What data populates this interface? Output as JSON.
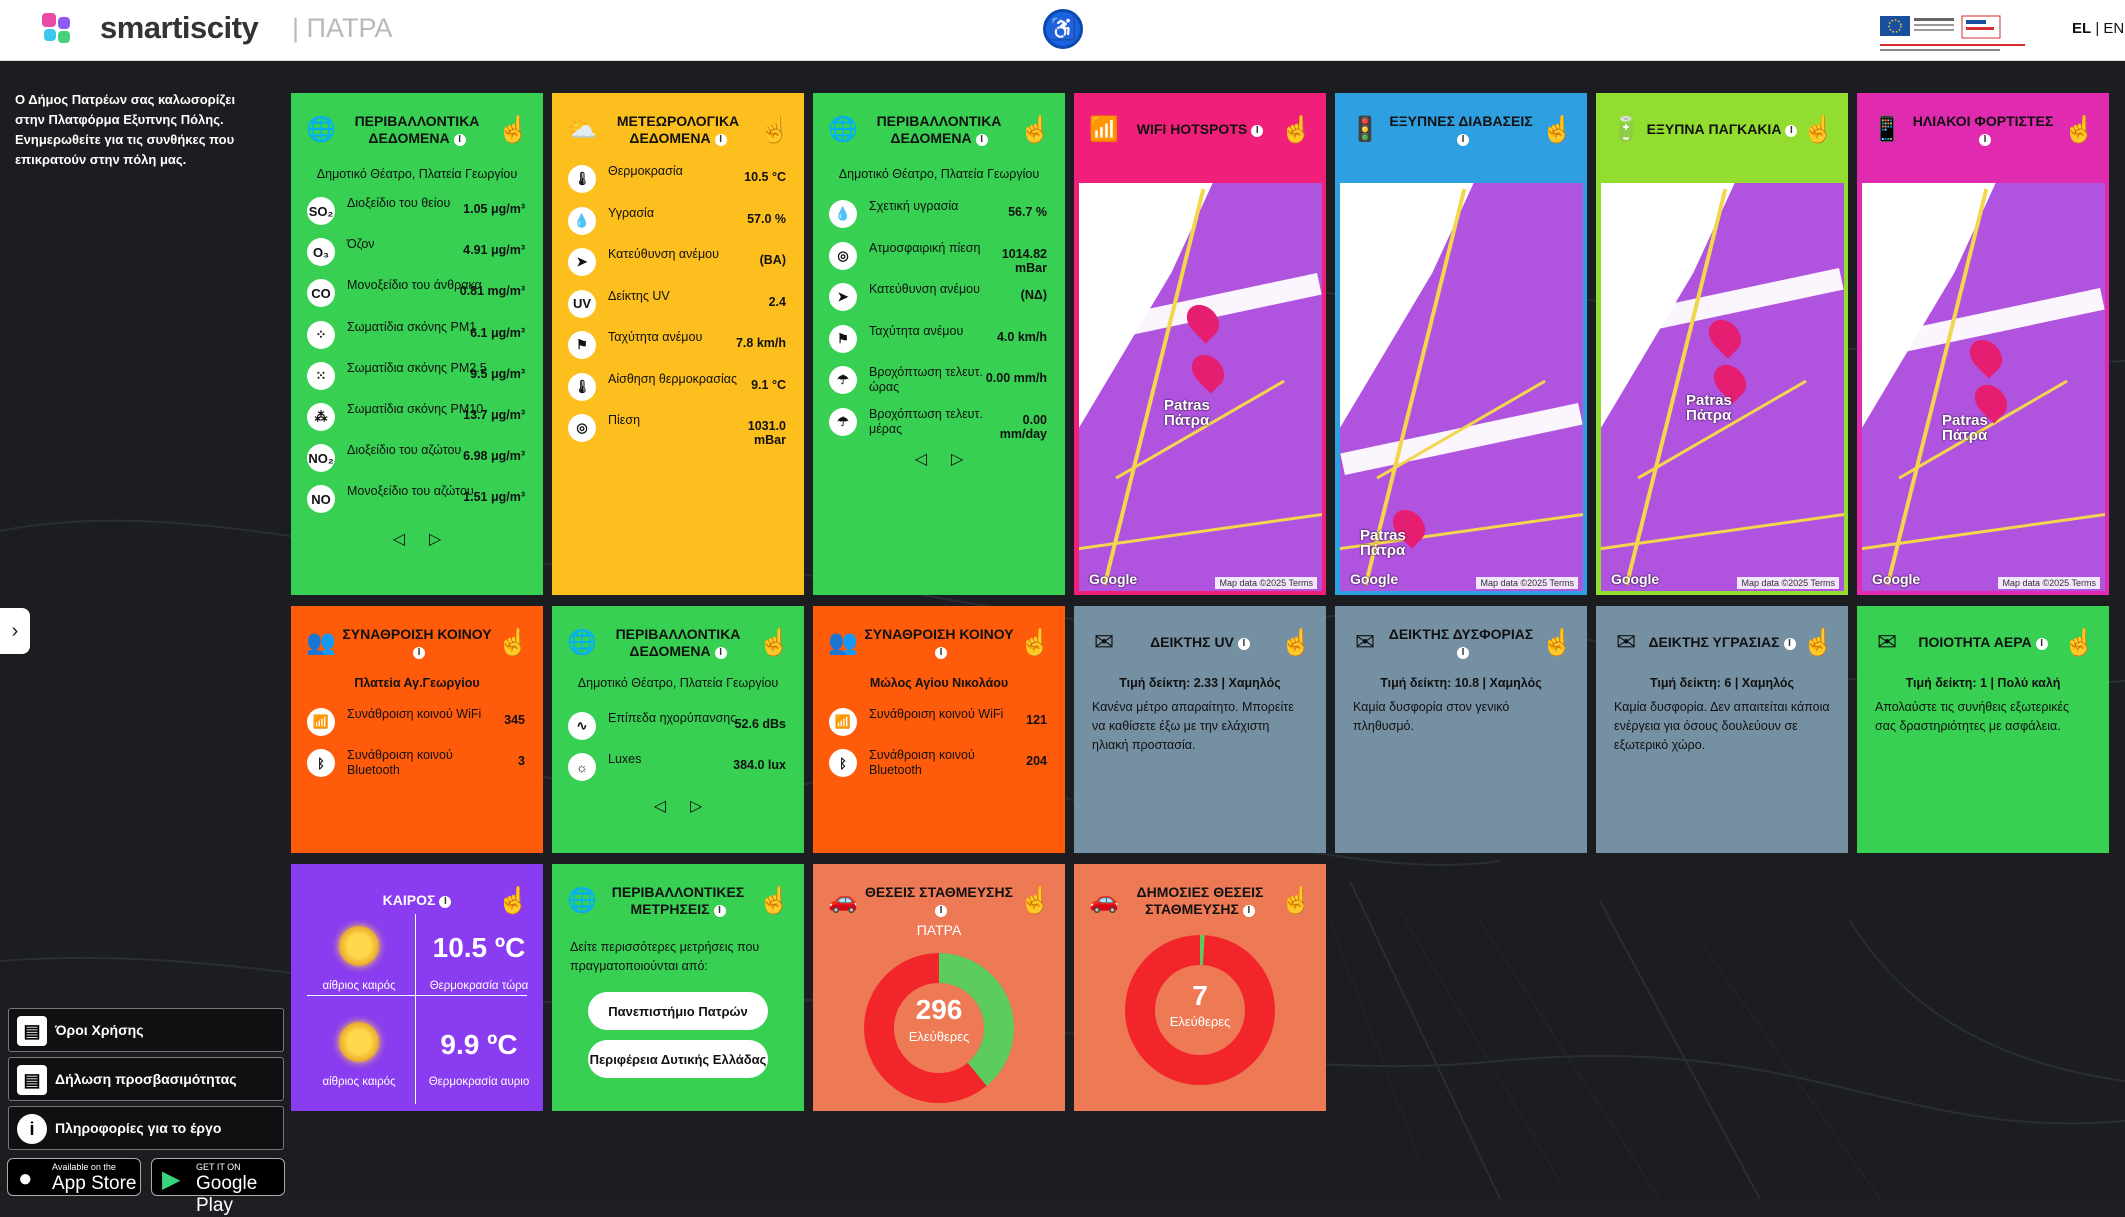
{
  "header": {
    "brand": "smartiscity",
    "city": "| ΠΑΤΡΑ",
    "lang_el": "EL",
    "lang_sep": " | ",
    "lang_en": "EN"
  },
  "intro": "Ο Δήμος Πατρέων σας καλωσορίζει στην Πλατφόρμα Εξυπνης Πόλης. Ενημερωθείτε για τις συνθήκες που επικρατούν στην πόλη μας.",
  "side_links": [
    {
      "label": "Όροι Χρήσης"
    },
    {
      "label": "Δήλωση προσβασιμότητας"
    },
    {
      "label": "Πληροφορίες για το έργο"
    }
  ],
  "stores": {
    "apple_small": "Available on the",
    "apple_big": "App Store",
    "google_small": "GET IT ON",
    "google_big": "Google Play"
  },
  "tiles": {
    "env1": {
      "title": "ΠΕΡΙΒΑΛΛΟΝΤΙΚΑ ΔΕΔΟΜΕΝΑ",
      "location": "Δημοτικό Θέατρο, Πλατεία Γεωργίου",
      "rows": [
        {
          "icon": "SO₂",
          "label": "Διοξείδιο του θείου",
          "value": "1.05 μg/m³"
        },
        {
          "icon": "O₃",
          "label": "Όζον",
          "value": "4.91 μg/m³"
        },
        {
          "icon": "CO",
          "label": "Μονοξείδιο του άνθρακα",
          "value": "0.81 mg/m³"
        },
        {
          "icon": "⁘",
          "label": "Σωματίδια σκόνης PM1",
          "value": "6.1 μg/m³"
        },
        {
          "icon": "⁙",
          "label": "Σωματίδια σκόνης PM2.5",
          "value": "9.5 μg/m³"
        },
        {
          "icon": "⁂",
          "label": "Σωματίδια σκόνης PM10",
          "value": "13.7 μg/m³"
        },
        {
          "icon": "NO₂",
          "label": "Διοξείδιο του αζώτου",
          "value": "6.98 μg/m³"
        },
        {
          "icon": "NO",
          "label": "Μονοξείδιο του αζώτου",
          "value": "1.51 μg/m³"
        }
      ]
    },
    "meteo": {
      "title": "ΜΕΤΕΩΡΟΛΟΓΙΚΑ ΔΕΔΟΜΕΝΑ",
      "rows": [
        {
          "icon": "🌡",
          "label": "Θερμοκρασία",
          "value": "10.5 °C"
        },
        {
          "icon": "💧",
          "label": "Υγρασία",
          "value": "57.0 %"
        },
        {
          "icon": "➤",
          "label": "Κατεύθυνση ανέμου",
          "value": "(ΒΑ)"
        },
        {
          "icon": "UV",
          "label": "Δείκτης UV",
          "value": "2.4"
        },
        {
          "icon": "⚑",
          "label": "Ταχύτητα ανέμου",
          "value": "7.8 km/h"
        },
        {
          "icon": "🌡",
          "label": "Αίσθηση θερμοκρασίας",
          "value": "9.1 °C"
        },
        {
          "icon": "◎",
          "label": "Πίεση",
          "value": "1031.0 mBar"
        }
      ]
    },
    "env2": {
      "title": "ΠΕΡΙΒΑΛΛΟΝΤΙΚΑ ΔΕΔΟΜΕΝΑ",
      "location": "Δημοτικό Θέατρο, Πλατεία Γεωργίου",
      "rows": [
        {
          "icon": "💧",
          "label": "Σχετική υγρασία",
          "value": "56.7 %"
        },
        {
          "icon": "◎",
          "label": "Ατμοσφαιρική πίεση",
          "value": "1014.82 mBar"
        },
        {
          "icon": "➤",
          "label": "Κατεύθυνση ανέμου",
          "value": "(ΝΔ)"
        },
        {
          "icon": "⚑",
          "label": "Ταχύτητα ανέμου",
          "value": "4.0 km/h"
        },
        {
          "icon": "☂",
          "label": "Βροχόπτωση τελευτ. ώρας",
          "value": "0.00 mm/h"
        },
        {
          "icon": "☂",
          "label": "Βροχόπτωση τελευτ. μέρας",
          "value": "0.00 mm/day"
        }
      ]
    },
    "wifi": {
      "title": "WIFI HOTSPOTS"
    },
    "crossings": {
      "title": "ΕΞΥΠΝΕΣ ΔΙΑΒΑΣΕΙΣ"
    },
    "benches": {
      "title": "ΕΞΥΠΝΑ ΠΑΓΚΑΚΙΑ"
    },
    "chargers": {
      "title": "ΗΛΙΑΚΟΙ ΦΟΡΤΙΣΤΕΣ"
    },
    "crowd1": {
      "title": "ΣΥΝΑΘΡΟΙΣΗ ΚΟΙΝΟΥ",
      "location": "Πλατεία Αγ.Γεωργίου",
      "rows": [
        {
          "icon": "📶",
          "label": "Συνάθροιση κοινού WiFi",
          "value": "345"
        },
        {
          "icon": "ᛒ",
          "label": "Συνάθροιση κοινού Bluetooth",
          "value": "3"
        }
      ]
    },
    "env3": {
      "title": "ΠΕΡΙΒΑΛΛΟΝΤΙΚΑ ΔΕΔΟΜΕΝΑ",
      "location": "Δημοτικό Θέατρο, Πλατεία Γεωργίου",
      "rows": [
        {
          "icon": "∿",
          "label": "Επίπεδα ηχορύπανσης",
          "value": "52.6 dBs"
        },
        {
          "icon": "☼",
          "label": "Luxes",
          "value": "384.0 lux"
        }
      ]
    },
    "crowd2": {
      "title": "ΣΥΝΑΘΡΟΙΣΗ ΚΟΙΝΟΥ",
      "location": "Μώλος Αγίου Νικολάου",
      "rows": [
        {
          "icon": "📶",
          "label": "Συνάθροιση κοινού WiFi",
          "value": "121"
        },
        {
          "icon": "ᛒ",
          "label": "Συνάθροιση κοινού Bluetooth",
          "value": "204"
        }
      ]
    },
    "uv": {
      "title": "ΔΕΙΚΤΗΣ UV",
      "index": "Τιμή δείκτη: 2.33 | Χαμηλός",
      "desc": "Κανένα μέτρο απαραίτητο. Μπορείτε να καθίσετε έξω με την ελάχιστη ηλιακή προστασία."
    },
    "discomfort": {
      "title": "ΔΕΙΚΤΗΣ ΔΥΣΦΟΡΙΑΣ",
      "index": "Τιμή δείκτη: 10.8 | Χαμηλός",
      "desc": "Καμία δυσφορία στον γενικό πληθυσμό."
    },
    "humidity": {
      "title": "ΔΕΙΚΤΗΣ ΥΓΡΑΣΙΑΣ",
      "index": "Τιμή δείκτη: 6 | Χαμηλός",
      "desc": "Καμία δυσφορία. Δεν απαιτείται κάποια ενέργεια για όσους δουλεύουν σε εξωτερικό χώρο."
    },
    "airq": {
      "title": "ΠΟΙΟΤΗΤΑ ΑΕΡΑ",
      "index": "Τιμή δείκτη: 1 | Πολύ καλή",
      "desc": "Απολαύστε τις συνήθεις εξωτερικές σας δραστηριότητες με ασφάλεια."
    },
    "weather": {
      "title": "ΚΑΙΡΟΣ",
      "now_cond": "αίθριος καιρός",
      "now_temp": "10.5 ºC",
      "now_label": "Θερμοκρασία τώρα",
      "tom_cond": "αίθριος καιρός",
      "tom_temp": "9.9 ºC",
      "tom_label": "Θερμοκρασία αυριο"
    },
    "measurements": {
      "title": "ΠΕΡΙΒΑΛΛΟΝΤΙΚΕΣ ΜΕΤΡΗΣΕΙΣ",
      "desc": "Δείτε περισσότερες μετρήσεις που πραγματοποιούνται από:",
      "btn1": "Πανεπιστήμιο Πατρών",
      "btn2": "Περιφέρεια Δυτικής Ελλάδας"
    },
    "parking1": {
      "title": "ΘΕΣΕΙΣ ΣΤΑΘΜΕΥΣΗΣ",
      "subtitle": "ΠΑΤΡΑ",
      "value": "296",
      "label": "Ελεύθερες",
      "free_fraction": 0.39
    },
    "parking2": {
      "title": "ΔΗΜΟΣΙΕΣ ΘΕΣΕΙΣ ΣΤΑΘΜΕΥΣΗΣ",
      "value": "7",
      "label": "Ελεύθερες",
      "free_fraction": 0.01
    }
  },
  "map_labels": {
    "patras": "Patras",
    "patra_gr": "Πάτρα",
    "google": "Google",
    "mapdata": "Map data ©2025  Terms"
  },
  "colors": {
    "green": "#37d052",
    "yellow": "#fdbf1d",
    "pink": "#f0207a",
    "blue": "#2e9fe0",
    "lime": "#93dd30",
    "magenta": "#e02ab0",
    "orange": "#fe5b0b",
    "slate": "#7690a3",
    "purple": "#8a3cf0",
    "salmon": "#ee7a55"
  }
}
